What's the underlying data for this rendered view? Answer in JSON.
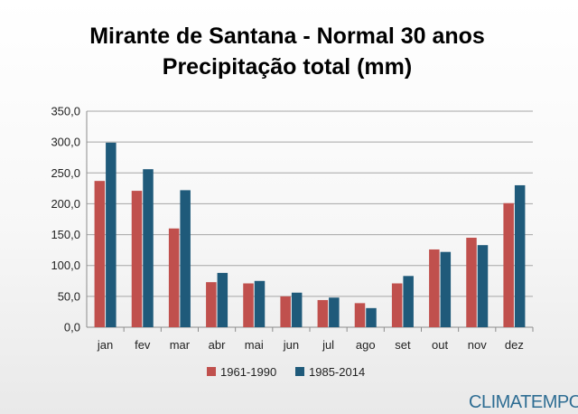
{
  "chart_data": {
    "type": "bar",
    "title": "Mirante de Santana - Normal 30 anos",
    "subtitle": "Precipitação total (mm)",
    "xlabel": "",
    "ylabel": "",
    "categories": [
      "jan",
      "fev",
      "mar",
      "abr",
      "mai",
      "jun",
      "jul",
      "ago",
      "set",
      "out",
      "nov",
      "dez"
    ],
    "series": [
      {
        "name": "1961-1990",
        "color": "#c0504d",
        "values": [
          237,
          221,
          160,
          73,
          71,
          50,
          44,
          39,
          71,
          126,
          145,
          201
        ]
      },
      {
        "name": "1985-2014",
        "color": "#1f5a7a",
        "values": [
          299,
          256,
          222,
          88,
          75,
          56,
          48,
          31,
          83,
          122,
          133,
          230
        ]
      }
    ],
    "ylim": [
      0,
      350
    ],
    "yticks": [
      "0,0",
      "50,0",
      "100,0",
      "150,0",
      "200,0",
      "250,0",
      "300,0",
      "350,0"
    ],
    "grid": true,
    "legend_position": "bottom"
  },
  "brand": {
    "name": "CLIMATEMPO",
    "color": "#2e6d93"
  }
}
